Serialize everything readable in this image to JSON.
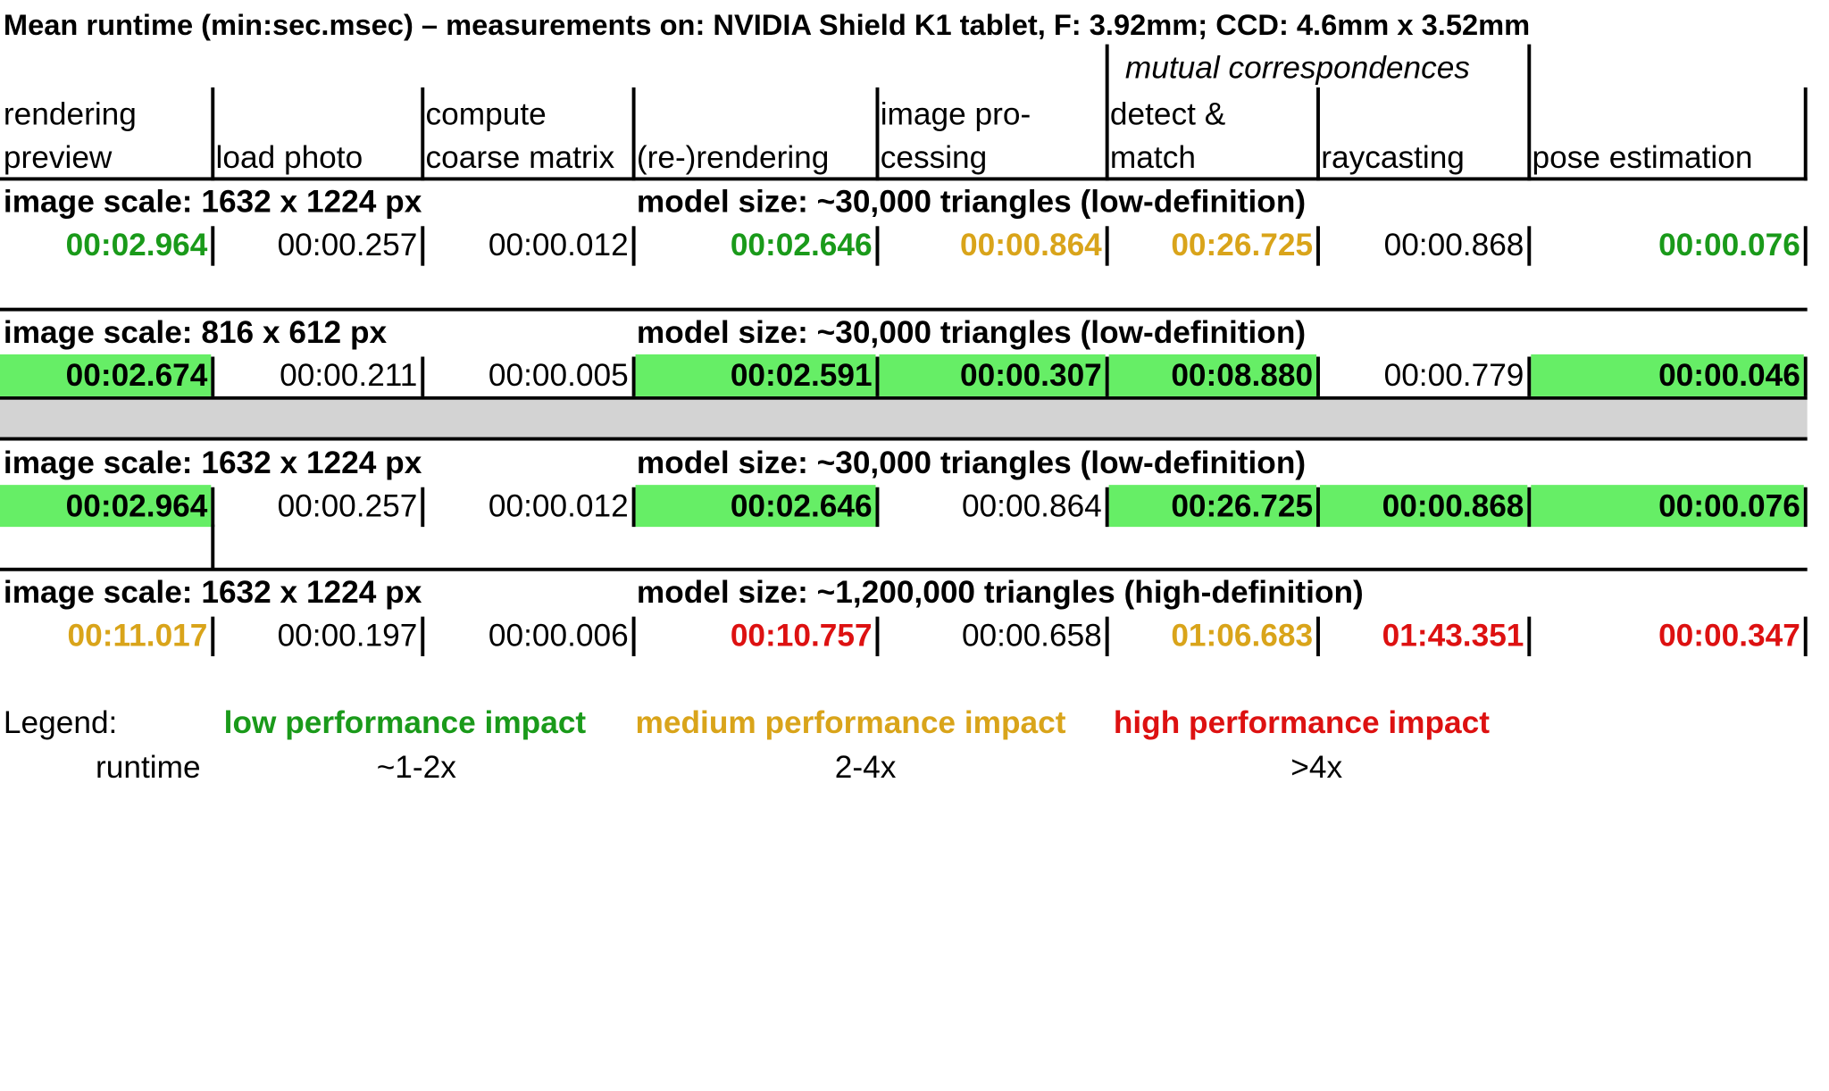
{
  "title": "Mean runtime (min:sec.msec) – measurements on: NVIDIA Shield K1 tablet, F: 3.92mm; CCD: 4.6mm x 3.52mm",
  "group_header": "mutual correspondences",
  "columns": [
    {
      "line1": "rendering",
      "line2": "preview"
    },
    {
      "line1": "",
      "line2": "load photo"
    },
    {
      "line1": "compute",
      "line2": "coarse matrix"
    },
    {
      "line1": "",
      "line2": "(re-)rendering"
    },
    {
      "line1": "image pro-",
      "line2": "cessing"
    },
    {
      "line1": "detect &",
      "line2": "match"
    },
    {
      "line1": "",
      "line2": "raycasting"
    },
    {
      "line1": "",
      "line2": "pose estimation"
    }
  ],
  "blocks": [
    {
      "image_scale": "image scale: 1632 x 1224 px",
      "model_size": "model size: ~30,000 triangles (low-definition)",
      "values": [
        "00:02.964",
        "00:00.257",
        "00:00.012",
        "00:02.646",
        "00:00.864",
        "00:26.725",
        "00:00.868",
        "00:00.076"
      ],
      "impact": [
        "low",
        "none",
        "none",
        "low",
        "medium",
        "medium",
        "none",
        "low"
      ],
      "highlight": [
        false,
        false,
        false,
        false,
        false,
        false,
        false,
        false
      ]
    },
    {
      "image_scale": "image scale: 816 x 612 px",
      "model_size": "model size: ~30,000 triangles (low-definition)",
      "values": [
        "00:02.674",
        "00:00.211",
        "00:00.005",
        "00:02.591",
        "00:00.307",
        "00:08.880",
        "00:00.779",
        "00:00.046"
      ],
      "impact": [
        "none",
        "none",
        "none",
        "none",
        "none",
        "none",
        "none",
        "none"
      ],
      "highlight": [
        true,
        false,
        false,
        true,
        true,
        true,
        false,
        true
      ]
    },
    {
      "image_scale": "image scale: 1632 x 1224 px",
      "model_size": "model size: ~30,000 triangles (low-definition)",
      "values": [
        "00:02.964",
        "00:00.257",
        "00:00.012",
        "00:02.646",
        "00:00.864",
        "00:26.725",
        "00:00.868",
        "00:00.076"
      ],
      "impact": [
        "none",
        "none",
        "none",
        "none",
        "none",
        "none",
        "none",
        "none"
      ],
      "highlight": [
        true,
        false,
        false,
        true,
        false,
        true,
        true,
        true
      ]
    },
    {
      "image_scale": "image scale: 1632 x 1224 px",
      "model_size": "model size: ~1,200,000 triangles (high-definition)",
      "values": [
        "00:11.017",
        "00:00.197",
        "00:00.006",
        "00:10.757",
        "00:00.658",
        "01:06.683",
        "01:43.351",
        "00:00.347"
      ],
      "impact": [
        "medium",
        "none",
        "none",
        "high",
        "none",
        "medium",
        "high",
        "high"
      ],
      "highlight": [
        false,
        false,
        false,
        false,
        false,
        false,
        false,
        false
      ]
    }
  ],
  "legend": {
    "label": "Legend:",
    "low": "low performance impact",
    "medium": "medium performance impact",
    "high": "high performance impact",
    "runtime_label": "runtime",
    "low_factor": "~1-2x",
    "medium_factor": "2-4x",
    "high_factor": ">4x"
  },
  "colors": {
    "low": "#1a9a1a",
    "medium": "#d9a41a",
    "high": "#dd1111",
    "highlight": "#66ee66",
    "separator": "#d3d3d3"
  }
}
